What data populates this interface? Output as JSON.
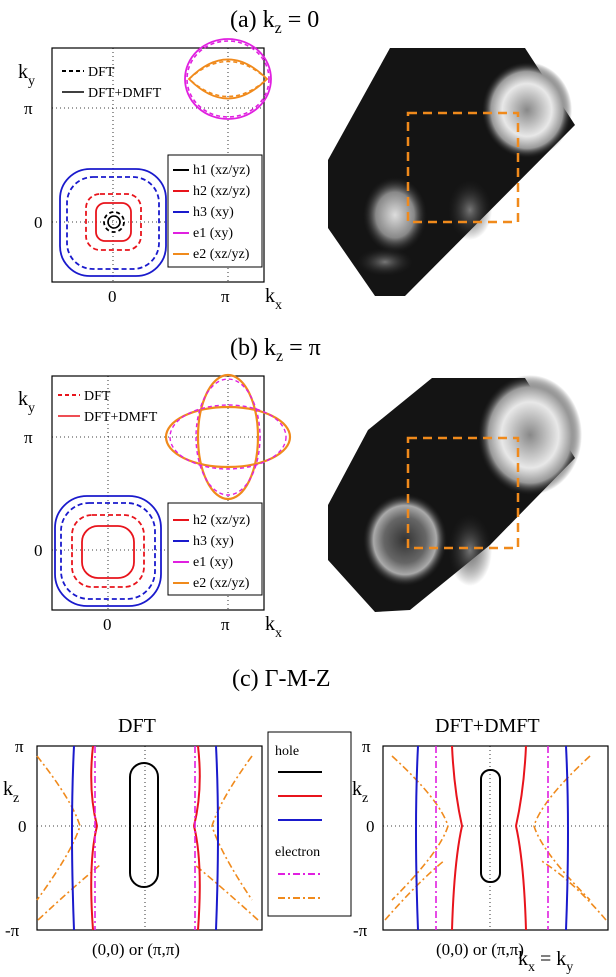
{
  "panels": {
    "a": {
      "title": "(a) k",
      "title_sub": "z",
      "title_rest": " = 0"
    },
    "b": {
      "title": "(b) k",
      "title_sub": "z",
      "title_rest": " = π"
    },
    "c": {
      "title": "(c) Γ-M-Z"
    }
  },
  "axes_2d": {
    "ky": "k",
    "ky_sub": "y",
    "kx": "k",
    "kx_sub": "x",
    "pi": "π",
    "zero": "0"
  },
  "panel_a_legend": {
    "styles": [
      "DFT",
      "DFT+DMFT"
    ],
    "bands": [
      {
        "label": "h1 (xz/yz)",
        "color": "#000000"
      },
      {
        "label": "h2 (xz/yz)",
        "color": "#e8141c"
      },
      {
        "label": "h3 (xy)",
        "color": "#1a1acc"
      },
      {
        "label": "e1 (xy)",
        "color": "#e020e0"
      },
      {
        "label": "e2 (xz/yz)",
        "color": "#f08a1c"
      }
    ]
  },
  "panel_b_legend": {
    "styles": [
      "DFT",
      "DFT+DMFT"
    ],
    "bands": [
      {
        "label": "h2 (xz/yz)",
        "color": "#e8141c"
      },
      {
        "label": "h3 (xy)",
        "color": "#1a1acc"
      },
      {
        "label": "e1 (xy)",
        "color": "#e020e0"
      },
      {
        "label": "e2 (xz/yz)",
        "color": "#f08a1c"
      }
    ]
  },
  "panel_c": {
    "left_title": "DFT",
    "right_title": "DFT+DMFT",
    "kz": "k",
    "kz_sub": "z",
    "pi": "π",
    "zero": "0",
    "minus_pi": "-π",
    "xlabel_left": "(0,0) or (π,π)",
    "xlabel_right": "(0,0) or (π,π)",
    "kxky": "k",
    "kxky_sub1": "x",
    "kxky_eq": " = k",
    "kxky_sub2": "y",
    "legend": {
      "hole": "hole",
      "electron": "electron",
      "hole_colors": [
        "#000000",
        "#e8141c",
        "#1a1acc"
      ],
      "electron_colors": [
        "#e020e0",
        "#f08a1c"
      ]
    }
  },
  "colors": {
    "h1": "#000000",
    "h2": "#e8141c",
    "h3": "#1a1acc",
    "e1": "#e020e0",
    "e2": "#f08a1c",
    "box": "#f08a1c"
  }
}
